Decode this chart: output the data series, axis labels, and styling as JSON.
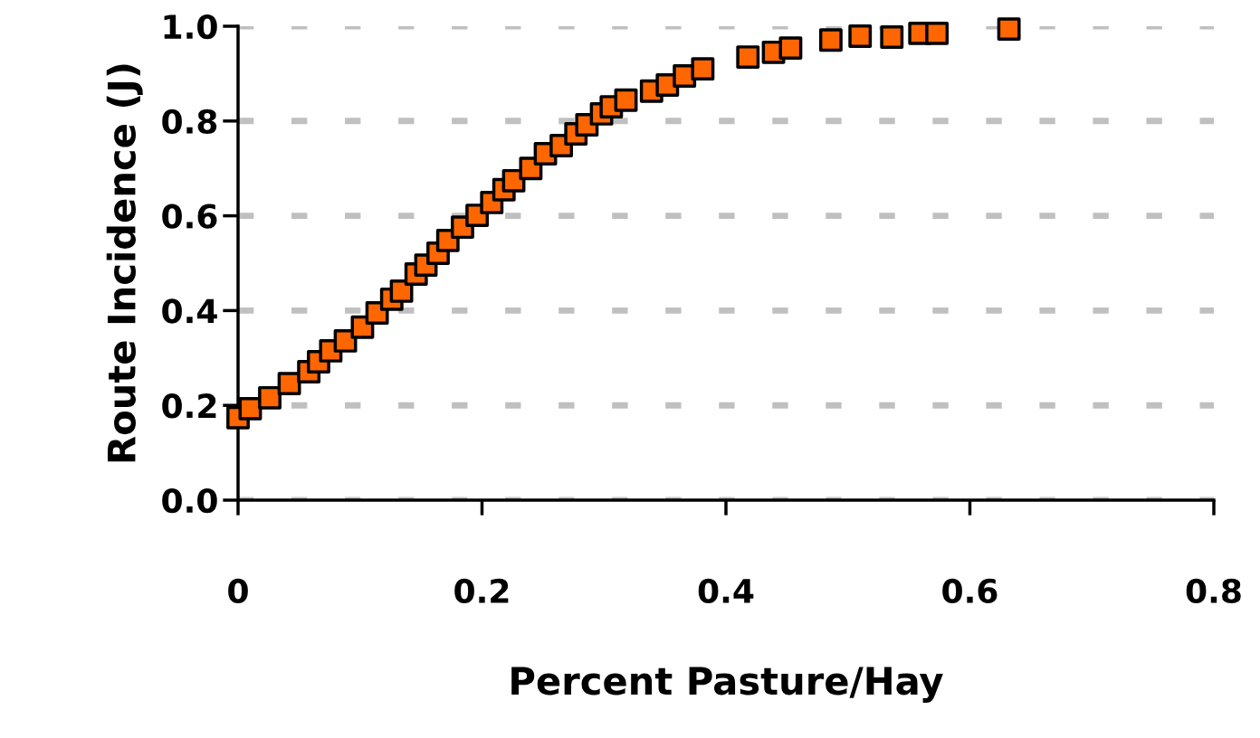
{
  "chart_data": {
    "type": "scatter",
    "xlabel": "Percent Pasture/Hay",
    "ylabel": "Route Incidence (J)",
    "x": [
      0,
      0.01,
      0.026,
      0.042,
      0.058,
      0.066,
      0.076,
      0.088,
      0.102,
      0.114,
      0.126,
      0.134,
      0.146,
      0.154,
      0.164,
      0.172,
      0.184,
      0.196,
      0.208,
      0.218,
      0.226,
      0.24,
      0.252,
      0.265,
      0.277,
      0.286,
      0.298,
      0.306,
      0.318,
      0.339,
      0.352,
      0.366,
      0.381,
      0.418,
      0.439,
      0.453,
      0.486,
      0.51,
      0.536,
      0.559,
      0.573,
      0.632
    ],
    "series": [
      {
        "color": "#ff6600",
        "values": [
          0.174,
          0.193,
          0.216,
          0.246,
          0.271,
          0.292,
          0.315,
          0.336,
          0.365,
          0.395,
          0.424,
          0.441,
          0.477,
          0.496,
          0.521,
          0.548,
          0.576,
          0.601,
          0.628,
          0.655,
          0.674,
          0.7,
          0.731,
          0.748,
          0.773,
          0.792,
          0.815,
          0.83,
          0.844,
          0.863,
          0.876,
          0.895,
          0.91,
          0.935,
          0.945,
          0.954,
          0.971,
          0.979,
          0.977,
          0.985,
          0.985,
          0.994
        ]
      }
    ],
    "xlim": [
      0,
      0.8
    ],
    "ylim": [
      0,
      1.0
    ],
    "xticks": [
      0,
      0.2,
      0.4,
      0.6,
      0.8
    ],
    "yticks": [
      {
        "value": 0,
        "label": "0.0"
      },
      0.2,
      0.4,
      0.6,
      0.8,
      {
        "value": 1.0,
        "label": "1.0"
      }
    ],
    "grid": "y",
    "marker": "square"
  }
}
